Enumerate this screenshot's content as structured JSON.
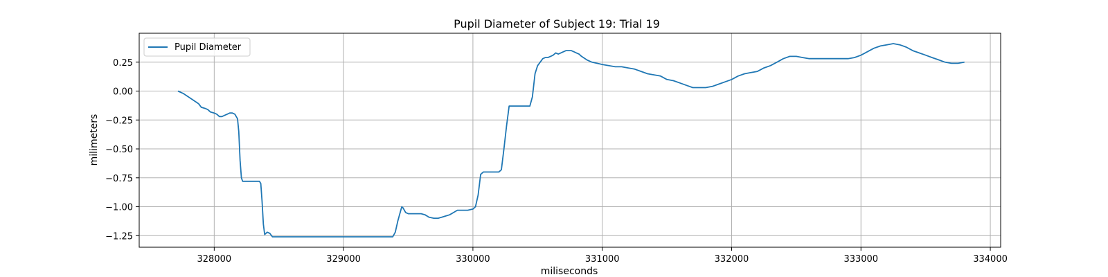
{
  "chart_data": {
    "type": "line",
    "title": "Pupil Diameter of Subject 19: Trial 19",
    "xlabel": "miliseconds",
    "ylabel": "milimeters",
    "xlim": [
      327420,
      334080
    ],
    "ylim": [
      -1.35,
      0.5
    ],
    "grid": true,
    "legend_position": "upper left",
    "x_ticks": [
      {
        "value": 328000,
        "label": "328000"
      },
      {
        "value": 329000,
        "label": "329000"
      },
      {
        "value": 330000,
        "label": "330000"
      },
      {
        "value": 331000,
        "label": "331000"
      },
      {
        "value": 332000,
        "label": "332000"
      },
      {
        "value": 333000,
        "label": "333000"
      },
      {
        "value": 334000,
        "label": "334000"
      }
    ],
    "y_ticks": [
      {
        "value": 0.25,
        "label": "0.25"
      },
      {
        "value": 0.0,
        "label": "0.00"
      },
      {
        "value": -0.25,
        "label": "−0.25"
      },
      {
        "value": -0.5,
        "label": "−0.50"
      },
      {
        "value": -0.75,
        "label": "−0.75"
      },
      {
        "value": -1.0,
        "label": "−1.00"
      },
      {
        "value": -1.25,
        "label": "−1.25"
      }
    ],
    "series": [
      {
        "name": "Pupil Diameter",
        "color": "#1f77b4",
        "points": [
          [
            327720,
            0.0
          ],
          [
            327760,
            -0.02
          ],
          [
            327800,
            -0.05
          ],
          [
            327840,
            -0.08
          ],
          [
            327880,
            -0.11
          ],
          [
            327900,
            -0.14
          ],
          [
            327930,
            -0.15
          ],
          [
            327950,
            -0.16
          ],
          [
            327970,
            -0.18
          ],
          [
            328000,
            -0.19
          ],
          [
            328020,
            -0.2
          ],
          [
            328040,
            -0.22
          ],
          [
            328060,
            -0.22
          ],
          [
            328080,
            -0.21
          ],
          [
            328100,
            -0.2
          ],
          [
            328120,
            -0.19
          ],
          [
            328140,
            -0.19
          ],
          [
            328160,
            -0.2
          ],
          [
            328180,
            -0.24
          ],
          [
            328190,
            -0.35
          ],
          [
            328200,
            -0.6
          ],
          [
            328210,
            -0.75
          ],
          [
            328220,
            -0.78
          ],
          [
            328260,
            -0.78
          ],
          [
            328300,
            -0.78
          ],
          [
            328330,
            -0.78
          ],
          [
            328350,
            -0.78
          ],
          [
            328360,
            -0.8
          ],
          [
            328370,
            -0.95
          ],
          [
            328380,
            -1.15
          ],
          [
            328390,
            -1.24
          ],
          [
            328410,
            -1.22
          ],
          [
            328430,
            -1.23
          ],
          [
            328450,
            -1.26
          ],
          [
            328600,
            -1.26
          ],
          [
            328800,
            -1.26
          ],
          [
            329000,
            -1.26
          ],
          [
            329200,
            -1.26
          ],
          [
            329300,
            -1.26
          ],
          [
            329380,
            -1.26
          ],
          [
            329400,
            -1.22
          ],
          [
            329420,
            -1.12
          ],
          [
            329440,
            -1.04
          ],
          [
            329450,
            -1.0
          ],
          [
            329460,
            -1.01
          ],
          [
            329480,
            -1.05
          ],
          [
            329500,
            -1.06
          ],
          [
            329550,
            -1.06
          ],
          [
            329600,
            -1.06
          ],
          [
            329630,
            -1.07
          ],
          [
            329660,
            -1.09
          ],
          [
            329700,
            -1.1
          ],
          [
            329730,
            -1.1
          ],
          [
            329760,
            -1.09
          ],
          [
            329790,
            -1.08
          ],
          [
            329820,
            -1.07
          ],
          [
            329850,
            -1.05
          ],
          [
            329880,
            -1.03
          ],
          [
            329920,
            -1.03
          ],
          [
            329960,
            -1.03
          ],
          [
            330000,
            -1.02
          ],
          [
            330020,
            -1.0
          ],
          [
            330040,
            -0.9
          ],
          [
            330060,
            -0.72
          ],
          [
            330080,
            -0.7
          ],
          [
            330120,
            -0.7
          ],
          [
            330160,
            -0.7
          ],
          [
            330200,
            -0.7
          ],
          [
            330220,
            -0.68
          ],
          [
            330240,
            -0.5
          ],
          [
            330260,
            -0.3
          ],
          [
            330280,
            -0.13
          ],
          [
            330300,
            -0.13
          ],
          [
            330350,
            -0.13
          ],
          [
            330400,
            -0.13
          ],
          [
            330440,
            -0.13
          ],
          [
            330460,
            -0.05
          ],
          [
            330480,
            0.15
          ],
          [
            330500,
            0.22
          ],
          [
            330520,
            0.25
          ],
          [
            330540,
            0.28
          ],
          [
            330560,
            0.29
          ],
          [
            330580,
            0.29
          ],
          [
            330600,
            0.3
          ],
          [
            330620,
            0.31
          ],
          [
            330640,
            0.33
          ],
          [
            330660,
            0.32
          ],
          [
            330680,
            0.33
          ],
          [
            330700,
            0.34
          ],
          [
            330720,
            0.35
          ],
          [
            330740,
            0.35
          ],
          [
            330760,
            0.35
          ],
          [
            330780,
            0.34
          ],
          [
            330800,
            0.33
          ],
          [
            330820,
            0.32
          ],
          [
            330840,
            0.3
          ],
          [
            330880,
            0.27
          ],
          [
            330920,
            0.25
          ],
          [
            330960,
            0.24
          ],
          [
            331000,
            0.23
          ],
          [
            331050,
            0.22
          ],
          [
            331100,
            0.21
          ],
          [
            331150,
            0.21
          ],
          [
            331200,
            0.2
          ],
          [
            331250,
            0.19
          ],
          [
            331300,
            0.17
          ],
          [
            331350,
            0.15
          ],
          [
            331400,
            0.14
          ],
          [
            331450,
            0.13
          ],
          [
            331500,
            0.1
          ],
          [
            331550,
            0.09
          ],
          [
            331600,
            0.07
          ],
          [
            331650,
            0.05
          ],
          [
            331700,
            0.03
          ],
          [
            331750,
            0.03
          ],
          [
            331800,
            0.03
          ],
          [
            331850,
            0.04
          ],
          [
            331900,
            0.06
          ],
          [
            331950,
            0.08
          ],
          [
            332000,
            0.1
          ],
          [
            332050,
            0.13
          ],
          [
            332100,
            0.15
          ],
          [
            332150,
            0.16
          ],
          [
            332200,
            0.17
          ],
          [
            332250,
            0.2
          ],
          [
            332300,
            0.22
          ],
          [
            332350,
            0.25
          ],
          [
            332400,
            0.28
          ],
          [
            332450,
            0.3
          ],
          [
            332500,
            0.3
          ],
          [
            332550,
            0.29
          ],
          [
            332600,
            0.28
          ],
          [
            332650,
            0.28
          ],
          [
            332700,
            0.28
          ],
          [
            332750,
            0.28
          ],
          [
            332800,
            0.28
          ],
          [
            332850,
            0.28
          ],
          [
            332900,
            0.28
          ],
          [
            332950,
            0.29
          ],
          [
            333000,
            0.31
          ],
          [
            333050,
            0.34
          ],
          [
            333100,
            0.37
          ],
          [
            333150,
            0.39
          ],
          [
            333200,
            0.4
          ],
          [
            333250,
            0.41
          ],
          [
            333300,
            0.4
          ],
          [
            333350,
            0.38
          ],
          [
            333400,
            0.35
          ],
          [
            333450,
            0.33
          ],
          [
            333500,
            0.31
          ],
          [
            333550,
            0.29
          ],
          [
            333600,
            0.27
          ],
          [
            333650,
            0.25
          ],
          [
            333700,
            0.24
          ],
          [
            333750,
            0.24
          ],
          [
            333800,
            0.25
          ]
        ]
      }
    ]
  }
}
